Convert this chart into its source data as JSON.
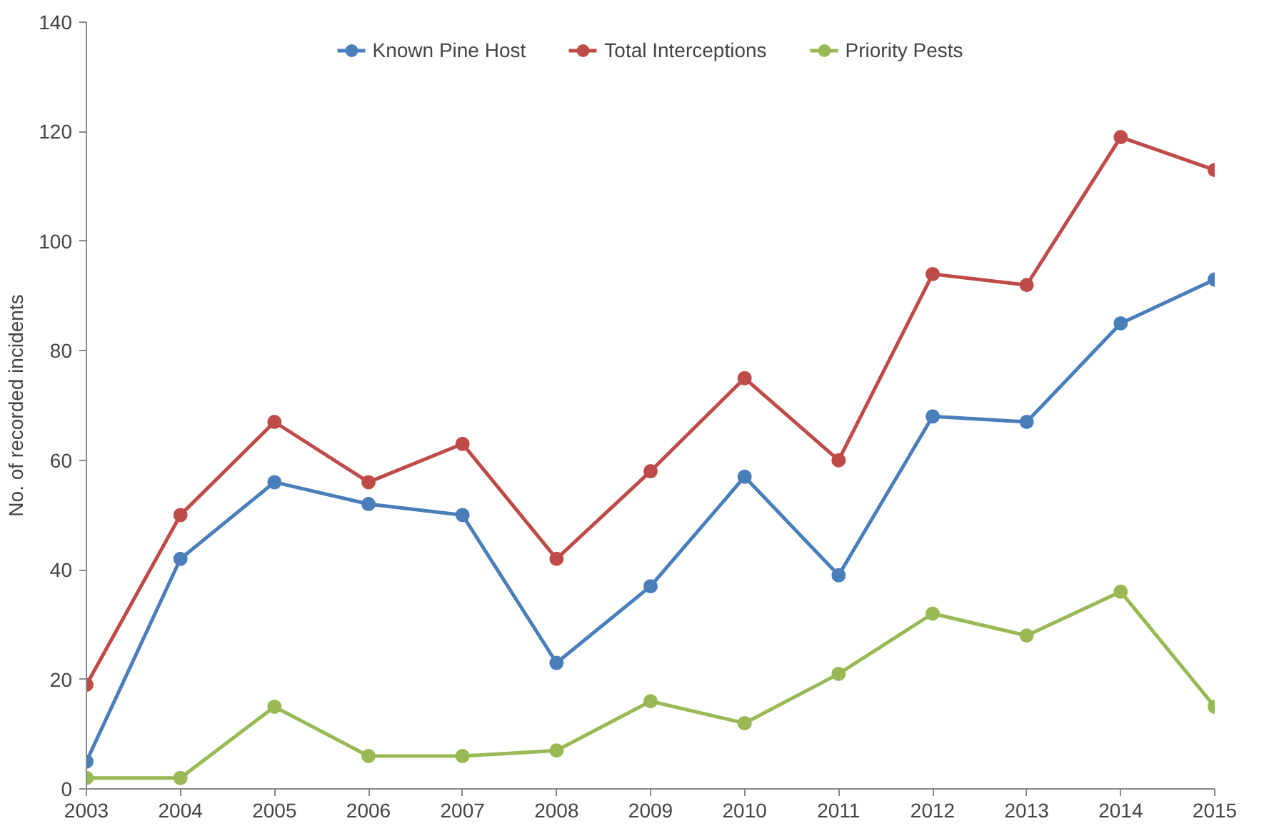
{
  "chart_data": {
    "type": "line",
    "ylabel": "No. of recorded incidents",
    "x": [
      2003,
      2004,
      2005,
      2006,
      2007,
      2008,
      2009,
      2010,
      2011,
      2012,
      2013,
      2014,
      2015
    ],
    "xlim": [
      2003,
      2015
    ],
    "xticks": [
      2003,
      2004,
      2005,
      2006,
      2007,
      2008,
      2009,
      2010,
      2011,
      2012,
      2013,
      2014,
      2015
    ],
    "ylim": [
      0,
      140
    ],
    "yticks": [
      0,
      20,
      40,
      60,
      80,
      100,
      120,
      140
    ],
    "grid": false,
    "legend": "top",
    "marker": "circle",
    "line_style": "solid",
    "series": [
      {
        "name": "Known Pine Host",
        "color": "#4a7ebb",
        "values": [
          5,
          42,
          56,
          52,
          50,
          23,
          37,
          57,
          39,
          68,
          67,
          85,
          93
        ]
      },
      {
        "name": "Total Interceptions",
        "color": "#be4b48",
        "values": [
          19,
          50,
          67,
          56,
          63,
          42,
          58,
          75,
          60,
          94,
          92,
          119,
          113
        ]
      },
      {
        "name": "Priority Pests",
        "color": "#98b954",
        "values": [
          2,
          2,
          15,
          6,
          6,
          7,
          16,
          12,
          21,
          32,
          28,
          36,
          15
        ]
      }
    ]
  }
}
